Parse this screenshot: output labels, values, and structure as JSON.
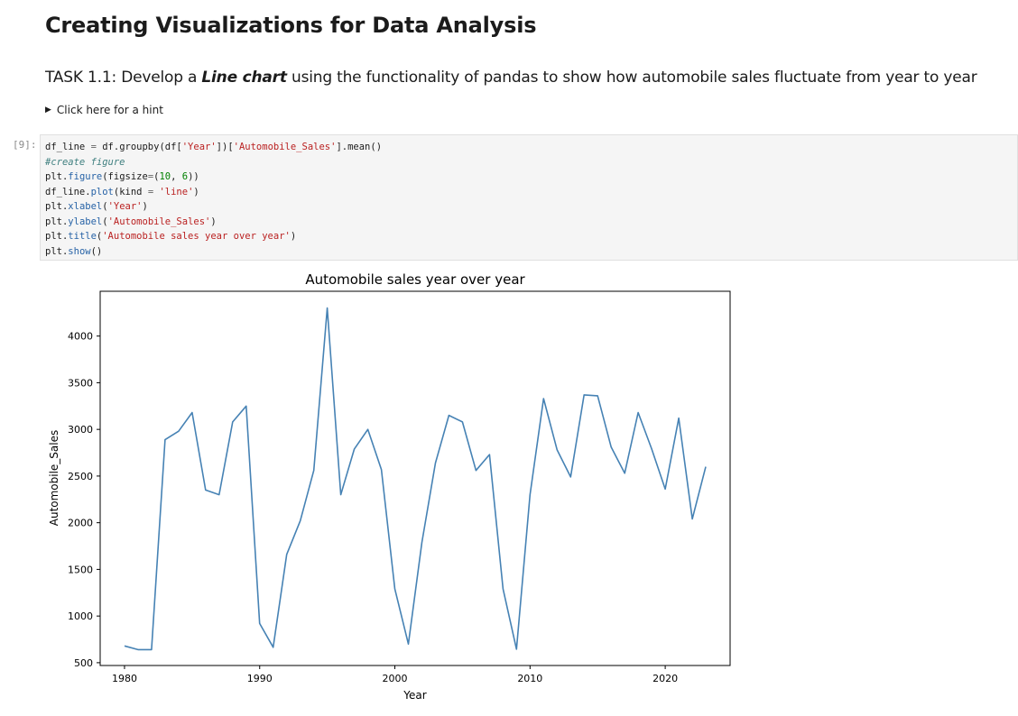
{
  "notebook": {
    "heading": "Creating Visualizations for Data Analysis",
    "task": {
      "prefix": "TASK 1.1: Develop a ",
      "emphasis": "Line chart",
      "suffix": " using the functionality of pandas to show how automobile sales fluctuate from year to year"
    },
    "hint_label": "Click here for a hint",
    "cell_prompt": "[9]:",
    "code_lines": [
      "df_line = df.groupby(df['Year'])['Automobile_Sales'].mean()",
      "#create figure",
      "plt.figure(figsize=(10, 6))",
      "df_line.plot(kind = 'line')",
      "plt.xlabel('Year')",
      "plt.ylabel('Automobile_Sales')",
      "plt.title('Automobile sales year over year')",
      "plt.show()"
    ]
  },
  "colors": {
    "line": "#4682b4",
    "axes": "#000000"
  },
  "chart_data": {
    "type": "line",
    "title": "Automobile sales year over year",
    "xlabel": "Year",
    "ylabel": "Automobile_Sales",
    "xlim": [
      1978.2,
      2024.8
    ],
    "ylim": [
      470,
      4480
    ],
    "xticks": [
      1980,
      1990,
      2000,
      2010,
      2020
    ],
    "yticks": [
      500,
      1000,
      1500,
      2000,
      2500,
      3000,
      3500,
      4000
    ],
    "grid": false,
    "series": [
      {
        "x": [
          1980,
          1981,
          1982,
          1983,
          1984,
          1985,
          1986,
          1987,
          1988,
          1989,
          1990,
          1991,
          1992,
          1993,
          1994,
          1995,
          1996,
          1997,
          1998,
          1999,
          2000,
          2001,
          2002,
          2003,
          2004,
          2005,
          2006,
          2007,
          2008,
          2009,
          2010,
          2011,
          2012,
          2013,
          2014,
          2015,
          2016,
          2017,
          2018,
          2019,
          2020,
          2021,
          2022,
          2023
        ],
        "values": [
          680,
          640,
          640,
          2890,
          2980,
          3180,
          2350,
          2300,
          3080,
          3250,
          920,
          665,
          1660,
          2020,
          2560,
          4300,
          2300,
          2790,
          3000,
          2570,
          1290,
          700,
          1790,
          2640,
          3150,
          3080,
          2560,
          2730,
          1290,
          645,
          2300,
          3330,
          2780,
          2490,
          3370,
          3360,
          2810,
          2530,
          3180,
          2790,
          2360,
          3120,
          2040,
          2600
        ]
      }
    ]
  }
}
